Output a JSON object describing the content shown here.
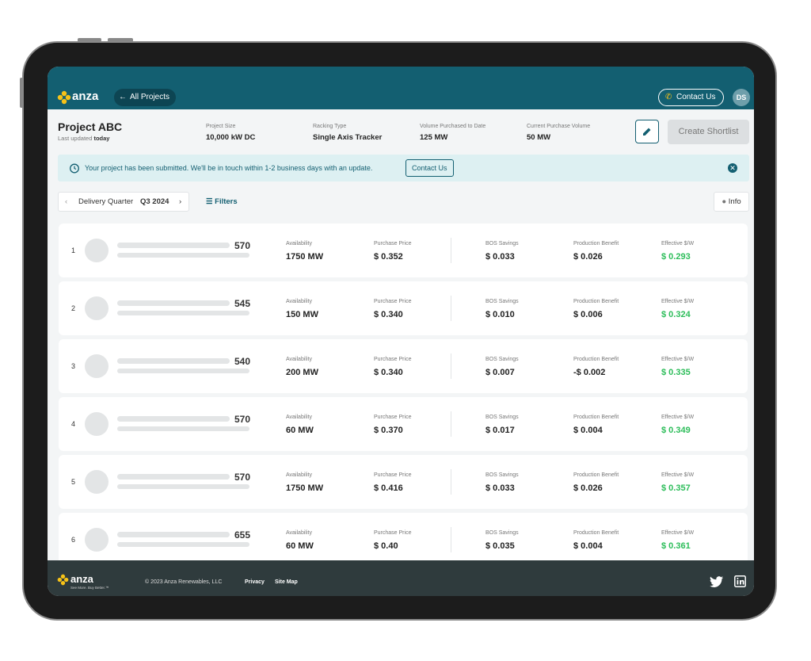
{
  "header": {
    "logo": "anza",
    "back": "All Projects",
    "contact": "Contact Us",
    "avatar": "DS"
  },
  "project": {
    "title": "Project ABC",
    "updated_prefix": "Last updated",
    "updated": "today",
    "fields": [
      {
        "label": "Project Size",
        "value": "10,000 kW DC"
      },
      {
        "label": "Racking Type",
        "value": "Single Axis Tracker"
      },
      {
        "label": "Volume Purchased to Date",
        "value": "125 MW"
      },
      {
        "label": "Current Purchase Volume",
        "value": "50 MW"
      }
    ],
    "create": "Create Shortlist"
  },
  "banner": {
    "text": "Your project has been submitted. We'll be in touch within 1-2 business days with an update.",
    "button": "Contact Us"
  },
  "toolbar": {
    "quarter_label": "Delivery Quarter",
    "quarter": "Q3 2024",
    "filters": "Filters",
    "info": "Info"
  },
  "columns": [
    "Availability",
    "Purchase Price",
    "BOS Savings",
    "Production Benefit",
    "Effective $/W"
  ],
  "rows": [
    {
      "rank": 1,
      "score": 570,
      "values": [
        "1750 MW",
        "$ 0.352",
        "$ 0.033",
        "$ 0.026",
        "$ 0.293"
      ]
    },
    {
      "rank": 2,
      "score": 545,
      "values": [
        "150 MW",
        "$ 0.340",
        "$ 0.010",
        "$ 0.006",
        "$ 0.324"
      ]
    },
    {
      "rank": 3,
      "score": 540,
      "values": [
        "200 MW",
        "$ 0.340",
        "$ 0.007",
        "-$ 0.002",
        "$ 0.335"
      ]
    },
    {
      "rank": 4,
      "score": 570,
      "values": [
        "60 MW",
        "$ 0.370",
        "$ 0.017",
        "$ 0.004",
        "$ 0.349"
      ]
    },
    {
      "rank": 5,
      "score": 570,
      "values": [
        "1750 MW",
        "$ 0.416",
        "$ 0.033",
        "$ 0.026",
        "$ 0.357"
      ]
    },
    {
      "rank": 6,
      "score": 655,
      "values": [
        "60 MW",
        "$ 0.40",
        "$ 0.035",
        "$ 0.004",
        "$ 0.361"
      ]
    }
  ],
  "footer": {
    "logo": "anza",
    "tagline": "See More. Buy Better.™",
    "copyright": "© 2023 Anza Renewables, LLC",
    "links": [
      "Privacy",
      "Site Map"
    ]
  }
}
